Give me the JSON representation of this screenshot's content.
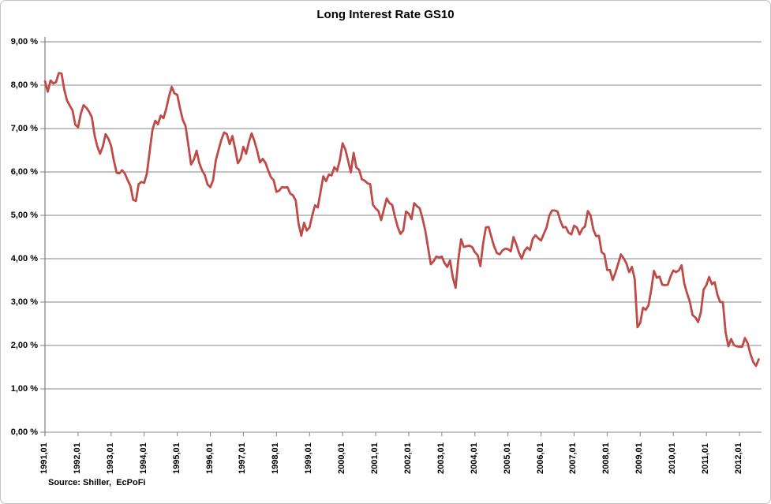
{
  "header": {
    "title": "Long Interest Rate GS10"
  },
  "footer": {
    "source_note": "Source: Shiller,  EcPoFi"
  },
  "chart_data": {
    "type": "line",
    "title": "Long Interest Rate GS10",
    "xlabel": "",
    "ylabel": "",
    "ylim": [
      0,
      9
    ],
    "y_step": 1,
    "grid": "horizontal",
    "legend": "none",
    "line_color": "#BE4B48",
    "gridline_color": "#878787",
    "axis_color": "#808080",
    "y_tick_labels": [
      "9,00 %",
      "8,00 %",
      "7,00 %",
      "6,00 %",
      "5,00 %",
      "4,00 %",
      "3,00 %",
      "2,00 %",
      "1,00 %",
      "0,00 %"
    ],
    "x_tick_labels": [
      "1991,01",
      "1992,01",
      "1993,01",
      "1994,01",
      "1995,01",
      "1996,01",
      "1997,01",
      "1998,01",
      "1999,01",
      "2000,01",
      "2001,01",
      "2002,01",
      "2003,01",
      "2004,01",
      "2005,01",
      "2006,01",
      "2007,01",
      "2008,01",
      "2009,01",
      "2010,01",
      "2011,01",
      "2012,01"
    ],
    "series": [
      {
        "name": "Long Interest Rate GS10",
        "x_start": "1991,01",
        "frequency": "monthly",
        "unit": "percent",
        "values": [
          8.09,
          7.85,
          8.11,
          8.04,
          8.07,
          8.28,
          8.27,
          7.9,
          7.65,
          7.53,
          7.42,
          7.09,
          7.03,
          7.34,
          7.54,
          7.48,
          7.39,
          7.26,
          6.84,
          6.59,
          6.42,
          6.59,
          6.87,
          6.77,
          6.6,
          6.26,
          5.98,
          5.97,
          6.04,
          5.96,
          5.81,
          5.68,
          5.36,
          5.33,
          5.72,
          5.77,
          5.75,
          5.97,
          6.48,
          6.97,
          7.18,
          7.1,
          7.3,
          7.24,
          7.46,
          7.74,
          7.96,
          7.81,
          7.78,
          7.47,
          7.2,
          7.06,
          6.63,
          6.17,
          6.28,
          6.49,
          6.2,
          6.04,
          5.93,
          5.71,
          5.65,
          5.81,
          6.27,
          6.51,
          6.74,
          6.91,
          6.87,
          6.64,
          6.83,
          6.53,
          6.2,
          6.3,
          6.58,
          6.42,
          6.69,
          6.89,
          6.71,
          6.49,
          6.22,
          6.3,
          6.21,
          6.03,
          5.88,
          5.81,
          5.54,
          5.57,
          5.65,
          5.64,
          5.65,
          5.5,
          5.46,
          5.34,
          4.81,
          4.53,
          4.83,
          4.65,
          4.72,
          5.0,
          5.23,
          5.18,
          5.54,
          5.9,
          5.79,
          5.94,
          5.92,
          6.11,
          6.03,
          6.28,
          6.66,
          6.52,
          6.26,
          5.99,
          6.44,
          6.1,
          6.05,
          5.83,
          5.8,
          5.74,
          5.72,
          5.24,
          5.16,
          5.1,
          4.89,
          5.14,
          5.39,
          5.28,
          5.24,
          4.97,
          4.73,
          4.57,
          4.65,
          5.09,
          5.04,
          4.91,
          5.28,
          5.21,
          5.16,
          4.93,
          4.65,
          4.26,
          3.87,
          3.94,
          4.05,
          4.03,
          4.05,
          3.9,
          3.81,
          3.96,
          3.57,
          3.33,
          3.98,
          4.45,
          4.27,
          4.29,
          4.3,
          4.27,
          4.15,
          4.08,
          3.83,
          4.35,
          4.72,
          4.73,
          4.5,
          4.28,
          4.13,
          4.1,
          4.19,
          4.23,
          4.22,
          4.17,
          4.5,
          4.34,
          4.14,
          4.0,
          4.18,
          4.26,
          4.2,
          4.46,
          4.54,
          4.47,
          4.42,
          4.57,
          4.72,
          4.99,
          5.11,
          5.11,
          5.09,
          4.88,
          4.72,
          4.73,
          4.6,
          4.56,
          4.76,
          4.72,
          4.56,
          4.69,
          4.75,
          5.1,
          5.0,
          4.67,
          4.52,
          4.53,
          4.15,
          4.1,
          3.74,
          3.74,
          3.51,
          3.68,
          3.88,
          4.1,
          4.01,
          3.89,
          3.69,
          3.81,
          3.53,
          2.42,
          2.52,
          2.87,
          2.82,
          2.93,
          3.29,
          3.72,
          3.56,
          3.59,
          3.4,
          3.39,
          3.4,
          3.59,
          3.73,
          3.69,
          3.73,
          3.85,
          3.42,
          3.2,
          3.01,
          2.7,
          2.65,
          2.54,
          2.76,
          3.29,
          3.39,
          3.58,
          3.41,
          3.46,
          3.17,
          3.0,
          3.0,
          2.3,
          1.98,
          2.15,
          2.01,
          1.98,
          1.97,
          1.97,
          2.17,
          2.05,
          1.8,
          1.62,
          1.53,
          1.68
        ]
      }
    ],
    "source": "Source: Shiller,  EcPoFi"
  }
}
